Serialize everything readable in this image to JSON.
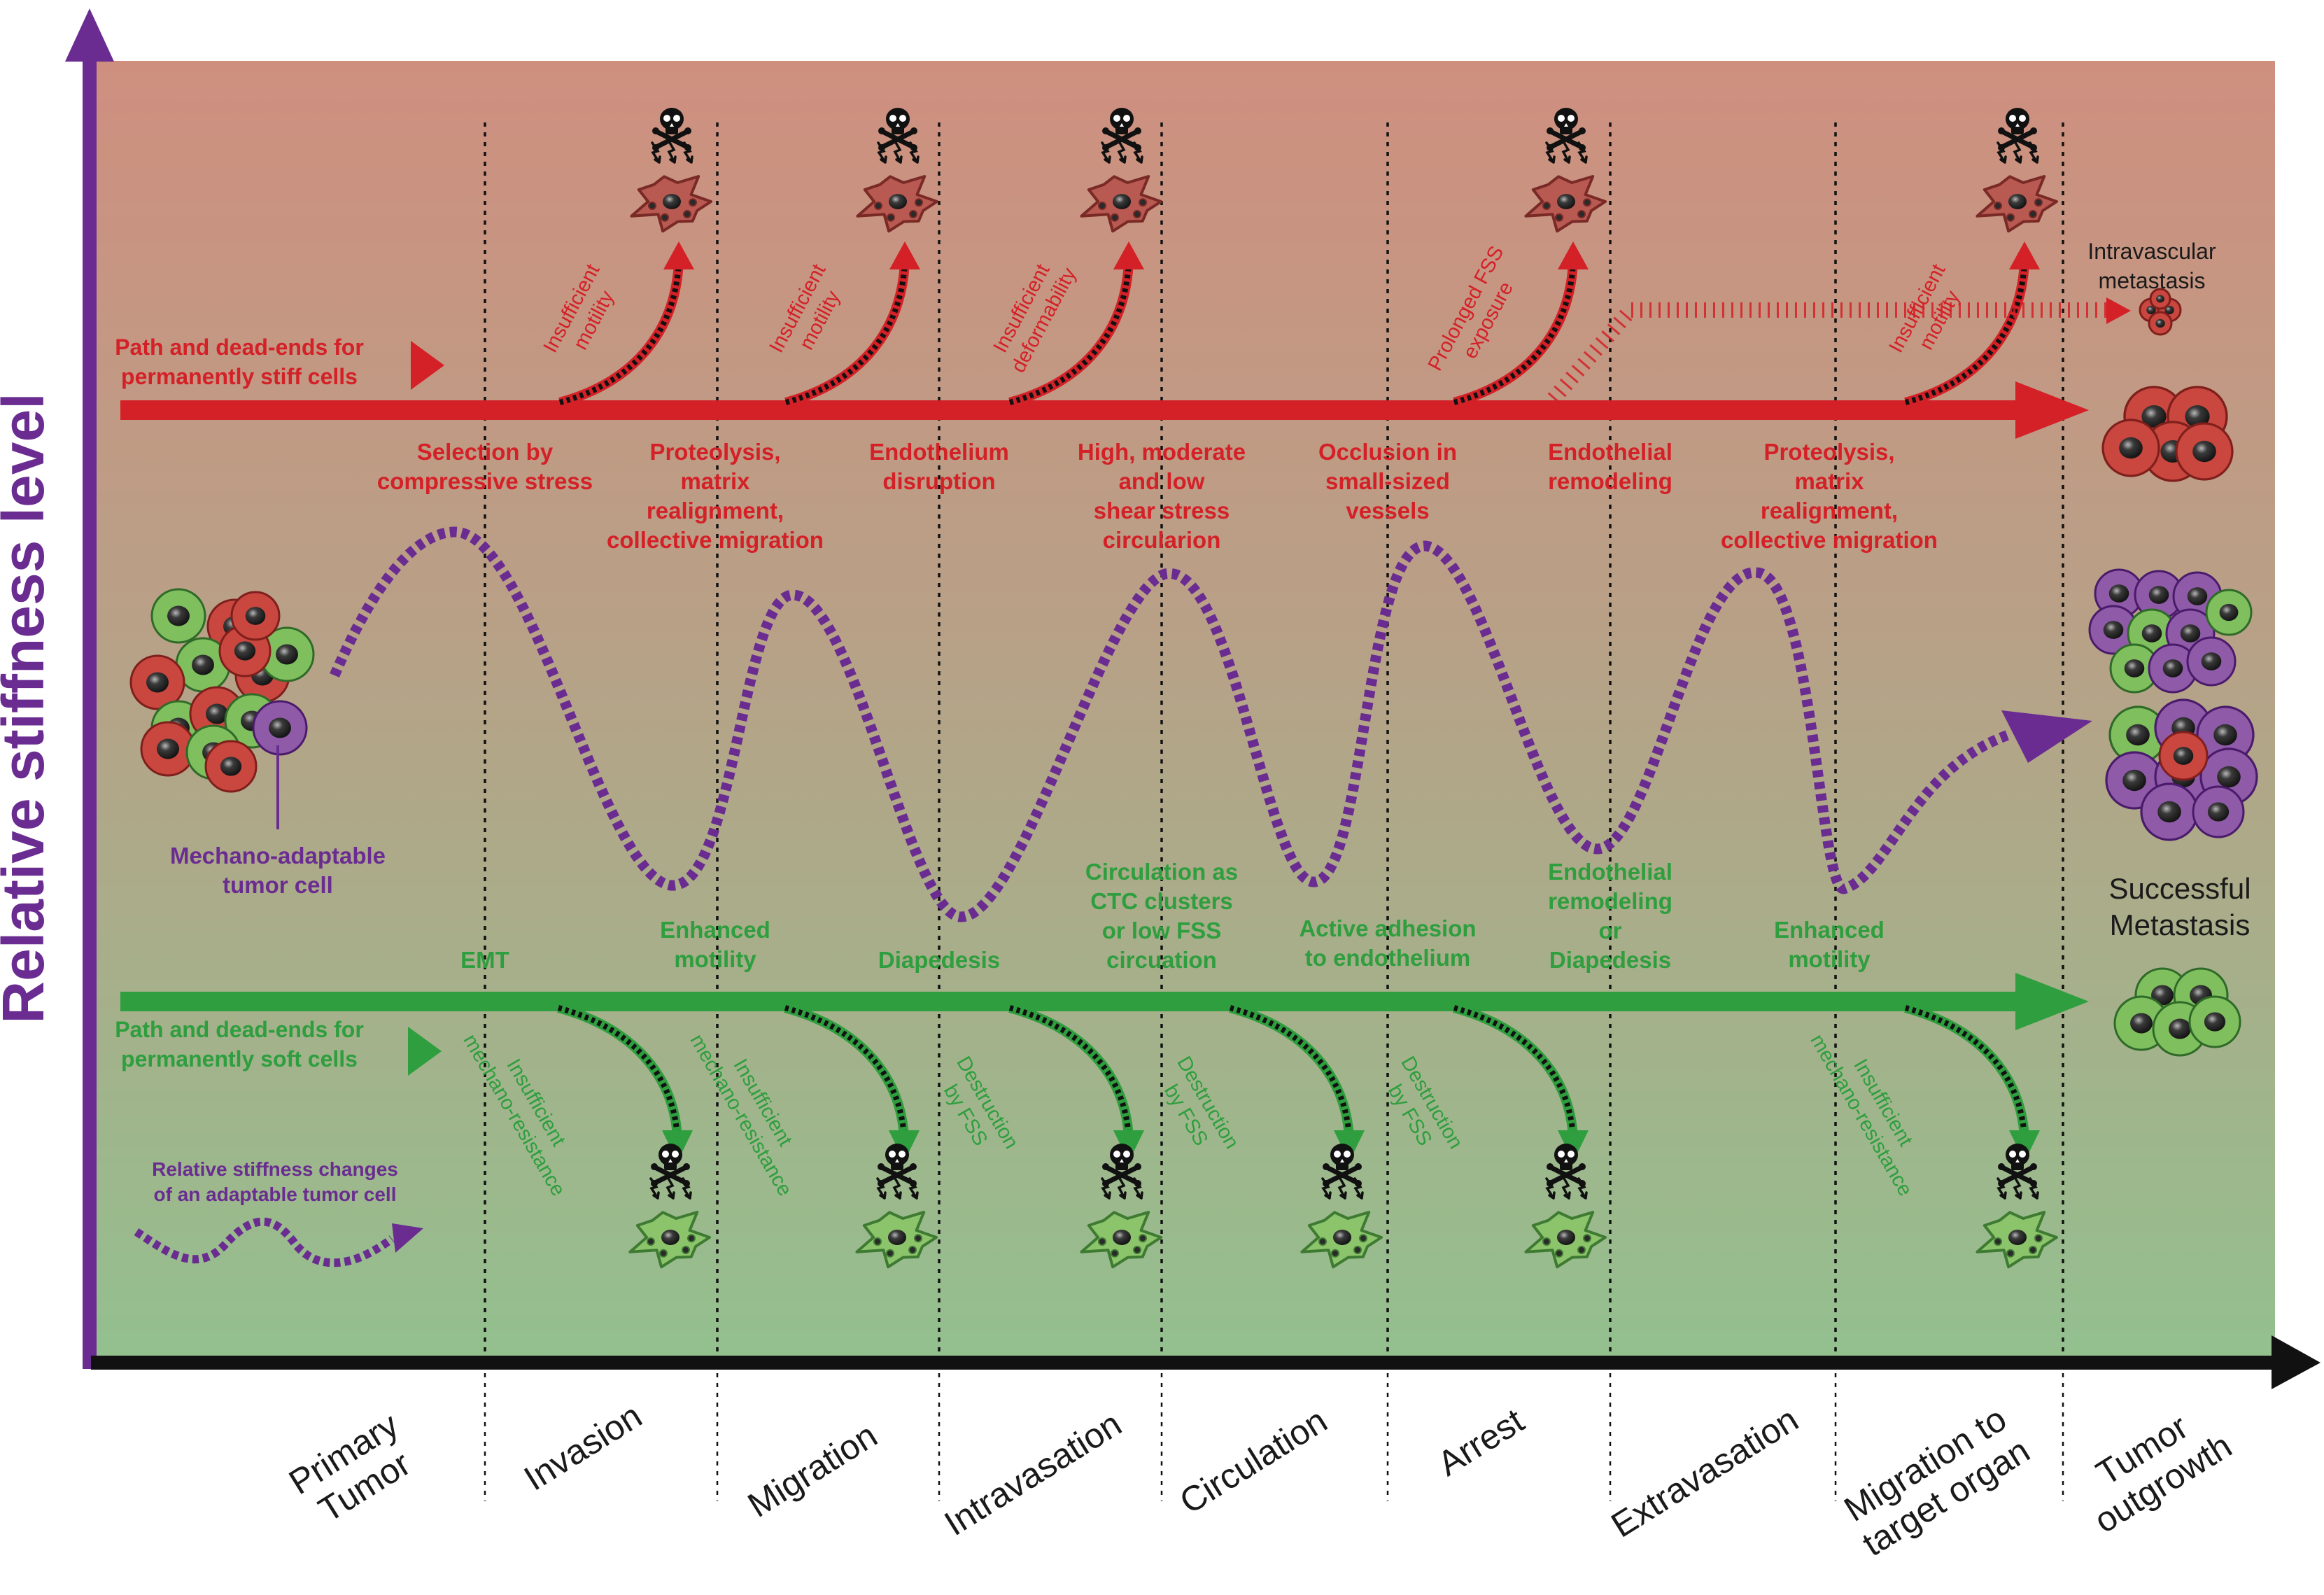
{
  "axis": {
    "y_label": "Relative stiffness level"
  },
  "stages": [
    [
      "Primary",
      "Tumor"
    ],
    [
      "Invasion"
    ],
    [
      "Migration"
    ],
    [
      "Intravasation"
    ],
    [
      "Circulation"
    ],
    [
      "Arrest"
    ],
    [
      "Extravasation"
    ],
    [
      "Migration to",
      "target organ"
    ],
    [
      "Tumor",
      "outgrowth"
    ]
  ],
  "stiff_path": {
    "label": [
      "Path and dead-ends for",
      "permanently stiff cells"
    ],
    "requirements": [
      [
        "Selection by",
        "compressive stress"
      ],
      [
        "Proteolysis,",
        "matrix",
        "realignment,",
        "collective migration"
      ],
      [
        "Endothelium",
        "disruption"
      ],
      [
        "High, moderate",
        "and low",
        "shear stress",
        "circularion"
      ],
      [
        "Occlusion in",
        "small-sized",
        "vessels"
      ],
      [
        "Endothelial",
        "remodeling"
      ],
      [
        "Proteolysis,",
        "matrix",
        "realignment,",
        "collective migration"
      ]
    ],
    "dead_ends": [
      [
        "Insufficient",
        "motility"
      ],
      [
        "Insufficient",
        "motility"
      ],
      [
        "Insufficient",
        "deformability"
      ],
      [
        "Prolonged FSS",
        "exposure"
      ],
      [
        "Insufficient",
        "motility"
      ]
    ],
    "intravascular_label": [
      "Intravascular",
      "metastasis"
    ]
  },
  "soft_path": {
    "label": [
      "Path and dead-ends for",
      "permanently soft cells"
    ],
    "requirements": [
      [
        "EMT"
      ],
      [
        "Enhanced",
        "motility"
      ],
      [
        "Diapedesis"
      ],
      [
        "Circulation as",
        "CTC clusters",
        "or low FSS",
        "circuation"
      ],
      [
        "Active adhesion",
        "to endothelium"
      ],
      [
        "Endothelial",
        "remodeling",
        "or",
        "Diapedesis"
      ],
      [
        "Enhanced",
        "motility"
      ]
    ],
    "dead_ends": [
      [
        "Insufficient",
        "mechano-resistance"
      ],
      [
        "Insufficient",
        "mechano-resistance"
      ],
      [
        "Destruction",
        "by FSS"
      ],
      [
        "Destruction",
        "by FSS"
      ],
      [
        "Destruction",
        "by FSS"
      ],
      [
        "Insufficient",
        "mechano-resistance"
      ]
    ]
  },
  "adaptable": {
    "cell_label": [
      "Mechano-adaptable",
      "tumor cell"
    ],
    "legend": [
      "Relative stiffness changes",
      "of an adaptable tumor cell"
    ],
    "outcome": [
      "Successful",
      "Metastasis"
    ]
  },
  "colors": {
    "stiff": "#d42027",
    "soft": "#2e9e3e",
    "adaptable": "#6a2c91",
    "bg_top": "#cf8f7f",
    "bg_mid": "#b7a187",
    "bg_bottom": "#93c08e"
  }
}
